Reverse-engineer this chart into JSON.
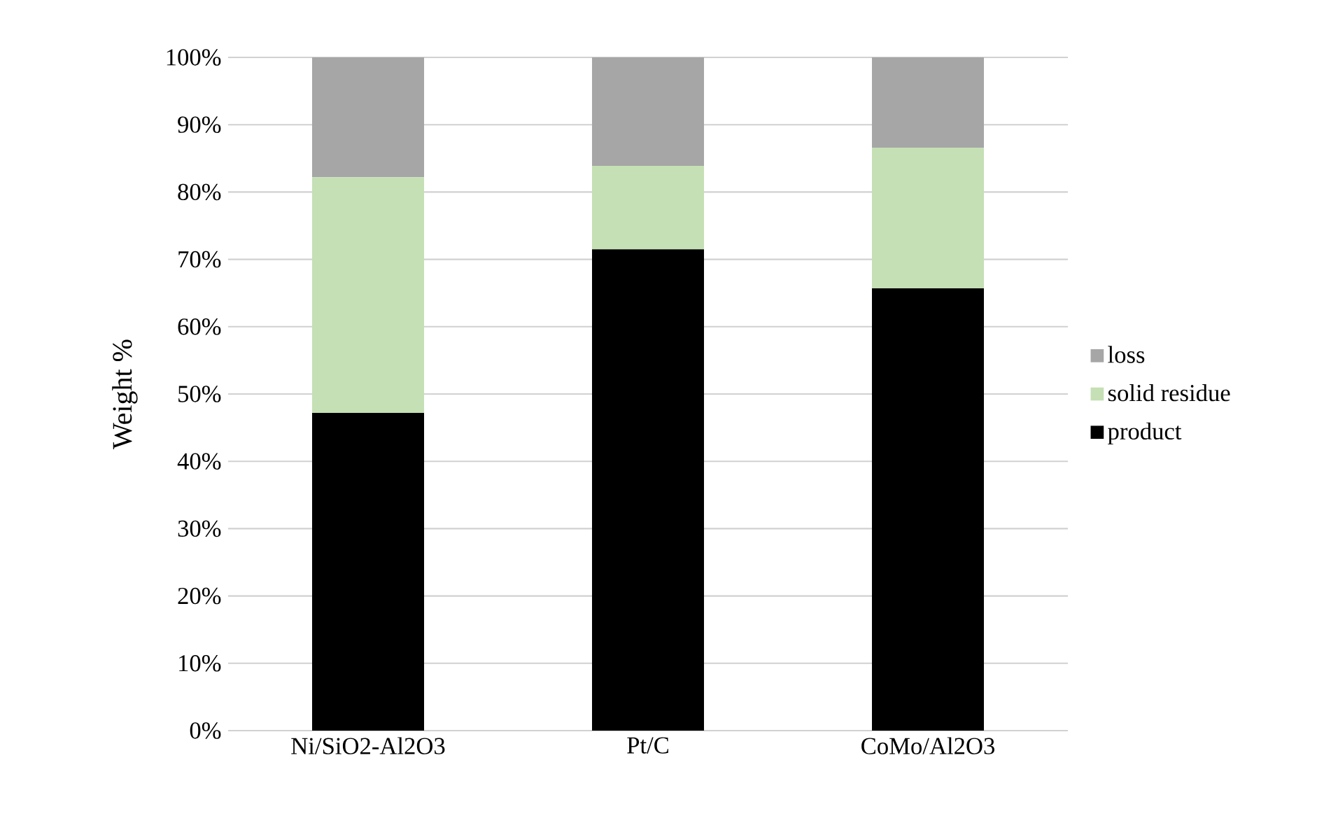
{
  "chart_data": {
    "type": "bar",
    "stacked": true,
    "ylabel": "Weight %",
    "categories": [
      "Ni/SiO2-Al2O3",
      "Pt/C",
      "CoMo/Al2O3"
    ],
    "series": [
      {
        "name": "product",
        "color": "#000000",
        "values": [
          47.2,
          71.5,
          65.7
        ]
      },
      {
        "name": "solid residue",
        "color": "#c5e0b4",
        "values": [
          35.0,
          12.4,
          20.9
        ]
      },
      {
        "name": "loss",
        "color": "#a6a6a6",
        "values": [
          17.8,
          16.1,
          13.4
        ]
      }
    ],
    "ylim": [
      0,
      100
    ],
    "yticks": [
      {
        "value": 0,
        "label": "0%"
      },
      {
        "value": 10,
        "label": "10%"
      },
      {
        "value": 20,
        "label": "20%"
      },
      {
        "value": 30,
        "label": "30%"
      },
      {
        "value": 40,
        "label": "40%"
      },
      {
        "value": 50,
        "label": "50%"
      },
      {
        "value": 60,
        "label": "60%"
      },
      {
        "value": 70,
        "label": "70%"
      },
      {
        "value": 80,
        "label": "80%"
      },
      {
        "value": 90,
        "label": "90%"
      },
      {
        "value": 100,
        "label": "100%"
      }
    ],
    "grid": "y",
    "legend": "right"
  }
}
